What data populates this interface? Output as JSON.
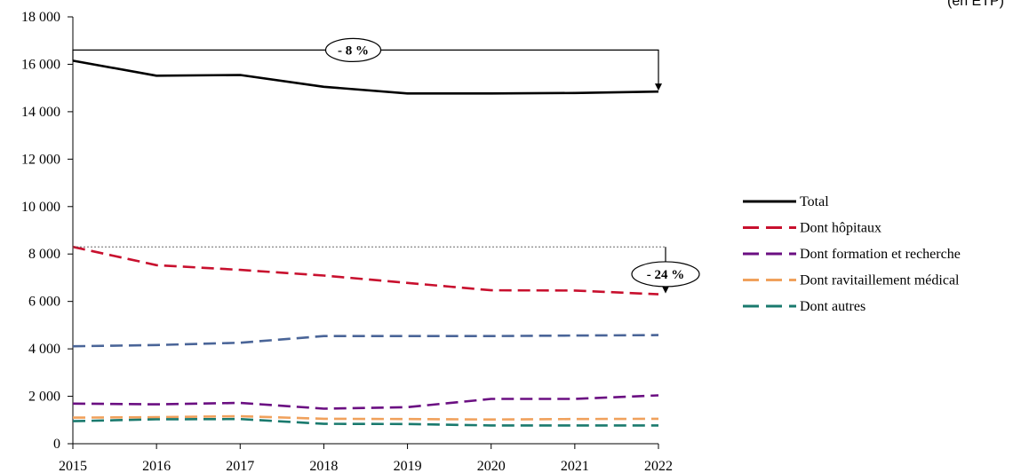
{
  "chart_data": {
    "type": "line",
    "unit_label": "(en ETP)",
    "x": [
      "2015",
      "2016",
      "2017",
      "2018",
      "2019",
      "2020",
      "2021",
      "2022"
    ],
    "ylim": [
      0,
      18000
    ],
    "yticks": [
      0,
      2000,
      4000,
      6000,
      8000,
      10000,
      12000,
      14000,
      16000,
      18000
    ],
    "ytick_labels": [
      "0",
      "2 000",
      "4 000",
      "6 000",
      "8 000",
      "10 000",
      "12 000",
      "14 000",
      "16 000",
      "18 000"
    ],
    "grid": false,
    "legend_position": "right",
    "series": [
      {
        "name": "Total",
        "color": "#000000",
        "dash": "solid",
        "in_legend": true,
        "values": [
          16150,
          15520,
          15550,
          15050,
          14770,
          14770,
          14790,
          14850
        ]
      },
      {
        "name": "Dont hôpitaux",
        "color": "#c8102e",
        "dash": "dashed",
        "in_legend": true,
        "values": [
          8300,
          7530,
          7330,
          7090,
          6780,
          6470,
          6460,
          6300
        ]
      },
      {
        "name": "",
        "color": "#4a6598",
        "dash": "dashed",
        "in_legend": false,
        "values": [
          4110,
          4160,
          4260,
          4540,
          4540,
          4540,
          4560,
          4580
        ]
      },
      {
        "name": "Dont formation et recherche",
        "color": "#6b0f82",
        "dash": "dashed",
        "in_legend": true,
        "values": [
          1690,
          1660,
          1720,
          1480,
          1540,
          1890,
          1890,
          2040
        ]
      },
      {
        "name": "Dont ravitaillement médical",
        "color": "#f0a15c",
        "dash": "dashed",
        "in_legend": true,
        "values": [
          1100,
          1120,
          1160,
          1050,
          1040,
          1020,
          1040,
          1050
        ]
      },
      {
        "name": "Dont autres",
        "color": "#1a7a6e",
        "dash": "dashed",
        "in_legend": true,
        "values": [
          950,
          1030,
          1040,
          840,
          830,
          770,
          770,
          770
        ]
      }
    ],
    "annotations": [
      {
        "text": "- 8 %",
        "from_series": 0,
        "from_index": 0,
        "to_index": 7,
        "level": 16600
      },
      {
        "text": "- 24 %",
        "from_series": 1,
        "from_index": 0,
        "to_index": 7
      }
    ]
  }
}
